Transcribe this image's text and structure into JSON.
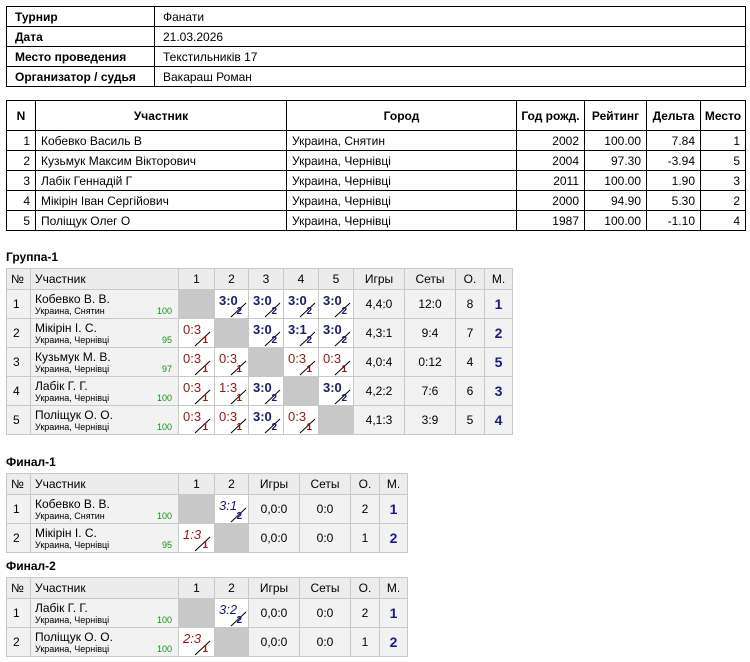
{
  "info": {
    "rows": [
      [
        "Турнир",
        "Фанати"
      ],
      [
        "Дата",
        "21.03.2026"
      ],
      [
        "Место проведения",
        "Текстильників 17"
      ],
      [
        "Организатор / судья",
        "Вакараш Роман"
      ]
    ]
  },
  "players": {
    "header": [
      "N",
      "Участник",
      "Город",
      "Год рожд.",
      "Рейтинг",
      "Дельта",
      "Место"
    ],
    "rows": [
      [
        "1",
        "Кобевко Василь В",
        "Украина, Снятин",
        "2002",
        "100.00",
        "7.84",
        "1"
      ],
      [
        "2",
        "Кузьмук Максим Вікторович",
        "Украина, Чернівці",
        "2004",
        "97.30",
        "-3.94",
        "5"
      ],
      [
        "3",
        "Лабік Геннадій Г",
        "Украина, Чернівці",
        "2011",
        "100.00",
        "1.90",
        "3"
      ],
      [
        "4",
        "Мікірін Іван Сергійович",
        "Украина, Чернівці",
        "2000",
        "94.90",
        "5.30",
        "2"
      ],
      [
        "5",
        "Поліщук Олег О",
        "Украина, Чернівці",
        "1987",
        "100.00",
        "-1.10",
        "4"
      ]
    ]
  },
  "groups": [
    {
      "title": "Группа-1",
      "header": [
        "№",
        "Участник",
        "1",
        "2",
        "3",
        "4",
        "5",
        "Игры",
        "Сеты",
        "О.",
        "М."
      ],
      "rows": [
        {
          "num": "1",
          "name": "Кобевко В. В.",
          "city": "Украина, Снятин",
          "rating": "100",
          "results": [
            null,
            {
              "score": "3:0",
              "pts": "2"
            },
            {
              "score": "3:0",
              "pts": "2"
            },
            {
              "score": "3:0",
              "pts": "2"
            },
            {
              "score": "3:0",
              "pts": "2"
            }
          ],
          "games": "4,4:0",
          "sets": "12:0",
          "points": "8",
          "place": "1"
        },
        {
          "num": "2",
          "name": "Мікірін І. С.",
          "city": "Украина, Чернівці",
          "rating": "95",
          "results": [
            {
              "score": "0:3",
              "pts": "1"
            },
            null,
            {
              "score": "3:0",
              "pts": "2"
            },
            {
              "score": "3:1",
              "pts": "2"
            },
            {
              "score": "3:0",
              "pts": "2"
            }
          ],
          "games": "4,3:1",
          "sets": "9:4",
          "points": "7",
          "place": "2"
        },
        {
          "num": "3",
          "name": "Кузьмук М. В.",
          "city": "Украина, Чернівці",
          "rating": "97",
          "results": [
            {
              "score": "0:3",
              "pts": "1"
            },
            {
              "score": "0:3",
              "pts": "1"
            },
            null,
            {
              "score": "0:3",
              "pts": "1"
            },
            {
              "score": "0:3",
              "pts": "1"
            }
          ],
          "games": "4,0:4",
          "sets": "0:12",
          "points": "4",
          "place": "5"
        },
        {
          "num": "4",
          "name": "Лабік Г. Г.",
          "city": "Украина, Чернівці",
          "rating": "100",
          "results": [
            {
              "score": "0:3",
              "pts": "1"
            },
            {
              "score": "1:3",
              "pts": "1"
            },
            {
              "score": "3:0",
              "pts": "2"
            },
            null,
            {
              "score": "3:0",
              "pts": "2"
            }
          ],
          "games": "4,2:2",
          "sets": "7:6",
          "points": "6",
          "place": "3"
        },
        {
          "num": "5",
          "name": "Поліщук О. О.",
          "city": "Украина, Чернівці",
          "rating": "100",
          "results": [
            {
              "score": "0:3",
              "pts": "1"
            },
            {
              "score": "0:3",
              "pts": "1"
            },
            {
              "score": "3:0",
              "pts": "2"
            },
            {
              "score": "0:3",
              "pts": "1"
            },
            null
          ],
          "games": "4,1:3",
          "sets": "3:9",
          "points": "5",
          "place": "4"
        }
      ]
    },
    {
      "title": "Финал-1",
      "header": [
        "№",
        "Участник",
        "1",
        "2",
        "Игры",
        "Сеты",
        "О.",
        "М."
      ],
      "rows": [
        {
          "num": "1",
          "name": "Кобевко В. В.",
          "city": "Украина, Снятин",
          "rating": "100",
          "results": [
            null,
            {
              "score": "3:1",
              "pts": "2"
            }
          ],
          "games": "0,0:0",
          "sets": "0:0",
          "points": "2",
          "place": "1"
        },
        {
          "num": "2",
          "name": "Мікірін І. С.",
          "city": "Украина, Чернівці",
          "rating": "95",
          "results": [
            {
              "score": "1:3",
              "pts": "1"
            },
            null
          ],
          "games": "0,0:0",
          "sets": "0:0",
          "points": "1",
          "place": "2"
        }
      ]
    },
    {
      "title": "Финал-2",
      "header": [
        "№",
        "Участник",
        "1",
        "2",
        "Игры",
        "Сеты",
        "О.",
        "М."
      ],
      "rows": [
        {
          "num": "1",
          "name": "Лабік Г. Г.",
          "city": "Украина, Чернівці",
          "rating": "100",
          "results": [
            null,
            {
              "score": "3:2",
              "pts": "2"
            }
          ],
          "games": "0,0:0",
          "sets": "0:0",
          "points": "2",
          "place": "1"
        },
        {
          "num": "2",
          "name": "Поліщук О. О.",
          "city": "Украина, Чернівці",
          "rating": "100",
          "results": [
            {
              "score": "2:3",
              "pts": "1"
            },
            null
          ],
          "games": "0,0:0",
          "sets": "0:0",
          "points": "1",
          "place": "2"
        }
      ]
    }
  ]
}
